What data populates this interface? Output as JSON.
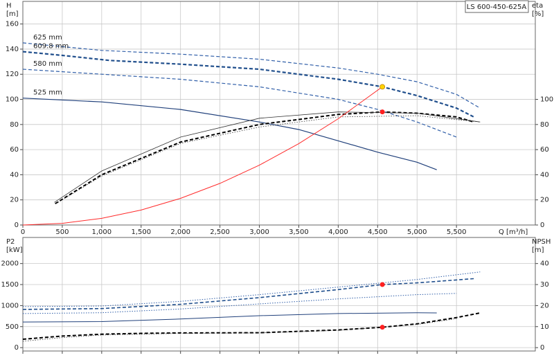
{
  "title": "LS 600-450-625A",
  "chart_data": [
    {
      "type": "line",
      "ylabel": [
        "H",
        "[m]"
      ],
      "y2label": [
        "eta",
        "[%]"
      ],
      "xlabel": "Q [m³/h]",
      "xlim": [
        0,
        6500
      ],
      "xticks": [
        0,
        500,
        {
          "value": 1000,
          "label": "1,000"
        },
        {
          "value": 1500,
          "label": "1,500"
        },
        {
          "value": 2000,
          "label": "2,000"
        },
        {
          "value": 2500,
          "label": "2,500"
        },
        {
          "value": 3000,
          "label": "3,000"
        },
        {
          "value": 3500,
          "label": "3,500"
        },
        {
          "value": 4000,
          "label": "4,000"
        },
        {
          "value": 4500,
          "label": "4,500"
        },
        {
          "value": 5000,
          "label": "5,000"
        },
        {
          "value": 5500,
          "label": "5,500"
        }
      ],
      "show_xtick_labels": true,
      "ylim": [
        0,
        178
      ],
      "yticks": [
        0,
        20,
        40,
        60,
        80,
        100,
        120,
        140,
        160
      ],
      "y2lim": [
        0,
        178
      ],
      "y2ticks": [
        0,
        20,
        40,
        60,
        80,
        100
      ],
      "grid": true,
      "series": [
        {
          "name": "625 mm",
          "color": "#2f5ea8",
          "dash": "dashed",
          "width": 1.2,
          "x": [
            0,
            1000,
            2000,
            3000,
            4000,
            4500,
            5000,
            5500,
            5800
          ],
          "values": [
            145,
            139,
            136,
            132,
            125,
            120,
            114,
            104,
            93
          ]
        },
        {
          "name": "609.8 mm",
          "color": "#1f4e8c",
          "dash": "dashed",
          "width": 2.2,
          "x": [
            0,
            500,
            1100,
            2000,
            3000,
            4000,
            4560,
            5000,
            5500,
            5720
          ],
          "values": [
            138,
            135,
            131,
            128,
            124,
            116,
            110,
            103,
            93,
            86
          ]
        },
        {
          "name": "580 mm",
          "color": "#2f5ea8",
          "dash": "dashed",
          "width": 1.2,
          "x": [
            0,
            1000,
            2000,
            3000,
            4000,
            4500,
            5000,
            5500
          ],
          "values": [
            124,
            120,
            116,
            110,
            100,
            92,
            82,
            70
          ]
        },
        {
          "name": "525 mm",
          "color": "#1f3f7a",
          "dash": "solid",
          "width": 1.2,
          "x": [
            0,
            1000,
            2000,
            3000,
            3500,
            4000,
            4500,
            5000,
            5250
          ],
          "values": [
            101,
            98,
            92,
            82,
            76,
            67,
            58,
            50,
            44
          ]
        },
        {
          "axis": "y2",
          "color": "#000000",
          "dash": "dashed",
          "width": 2,
          "x": [
            410,
            1000,
            2000,
            3000,
            4000,
            4560,
            5000,
            5500,
            5720
          ],
          "values": [
            17,
            40,
            66,
            80,
            88,
            90,
            89,
            86,
            82
          ]
        },
        {
          "axis": "y2",
          "color": "#333333",
          "dash": "solid",
          "width": 0.8,
          "x": [
            400,
            1000,
            2000,
            3000,
            4000,
            5000,
            5800
          ],
          "values": [
            18,
            43,
            70,
            85,
            90,
            89,
            82
          ]
        },
        {
          "axis": "y2",
          "color": "#333333",
          "dash": "dotted",
          "width": 0.8,
          "x": [
            420,
            1000,
            2000,
            3000,
            4000,
            5000,
            5800
          ],
          "values": [
            17,
            39,
            65,
            78,
            86,
            87,
            82
          ]
        },
        {
          "color": "#ff2a2a",
          "dash": "solid",
          "width": 1,
          "x": [
            0,
            500,
            1000,
            1500,
            2000,
            2500,
            3000,
            3500,
            4000,
            4560
          ],
          "values": [
            0,
            1.3,
            5.3,
            11.9,
            21.2,
            33.1,
            47.6,
            64.8,
            84.6,
            110
          ]
        }
      ],
      "markers": [
        {
          "x": 4560,
          "y": 110,
          "color": "#ffd400"
        },
        {
          "x": 4560,
          "y": 90,
          "color": "#ff2020",
          "axis": "y2"
        }
      ]
    },
    {
      "type": "line",
      "ylabel": [
        "P2",
        "[kW]"
      ],
      "y2label": [
        "NPSH",
        "[m]"
      ],
      "xlim": [
        0,
        6500
      ],
      "xticks": [
        0,
        500,
        1000,
        1500,
        2000,
        2500,
        3000,
        3500,
        4000,
        4500,
        5000,
        5500
      ],
      "show_xtick_labels": false,
      "ylim": [
        -80,
        2620
      ],
      "yticks": [
        0,
        500,
        1000,
        1500,
        2000
      ],
      "y2lim": [
        -1.6,
        52.4
      ],
      "y2ticks": [
        0,
        10,
        20,
        30,
        40
      ],
      "grid": true,
      "series": [
        {
          "color": "#2f5ea8",
          "dash": "dotted",
          "width": 1,
          "x": [
            0,
            1000,
            2000,
            3000,
            4000,
            5000,
            5800
          ],
          "values": [
            975,
            990,
            1100,
            1260,
            1440,
            1620,
            1800
          ]
        },
        {
          "color": "#1f4e8c",
          "dash": "dashed",
          "width": 1.6,
          "x": [
            0,
            1000,
            2000,
            3000,
            4000,
            4560,
            5000,
            5720
          ],
          "values": [
            910,
            930,
            1030,
            1190,
            1380,
            1500,
            1540,
            1640
          ]
        },
        {
          "color": "#2f5ea8",
          "dash": "dotted",
          "width": 1,
          "x": [
            0,
            1000,
            2000,
            3000,
            4000,
            5000,
            5500
          ],
          "values": [
            810,
            830,
            920,
            1040,
            1160,
            1260,
            1290
          ]
        },
        {
          "color": "#1f3f7a",
          "dash": "solid",
          "width": 1,
          "x": [
            0,
            1000,
            2000,
            3000,
            4000,
            5000,
            5250
          ],
          "values": [
            610,
            620,
            680,
            760,
            810,
            830,
            825
          ]
        },
        {
          "axis": "y2",
          "color": "#000000",
          "dash": "dashed",
          "width": 2,
          "x": [
            0,
            500,
            1000,
            1500,
            2000,
            3000,
            4000,
            4560,
            5000,
            5500,
            5800
          ],
          "values": [
            4,
            5.5,
            6.4,
            6.8,
            7,
            7.1,
            8.4,
            9.7,
            11.3,
            14.3,
            16.5
          ]
        },
        {
          "axis": "y2",
          "color": "#333333",
          "dash": "dotted",
          "width": 0.8,
          "x": [
            0,
            500,
            1000,
            2000,
            3000,
            4000,
            5000,
            5500
          ],
          "values": [
            3,
            4.8,
            6,
            6.8,
            7,
            8.2,
            11,
            13.8
          ]
        }
      ],
      "markers": [
        {
          "x": 4560,
          "y": 1500,
          "color": "#ff2020"
        },
        {
          "x": 4560,
          "y": 9.7,
          "color": "#ff2020",
          "axis": "y2"
        }
      ]
    }
  ]
}
